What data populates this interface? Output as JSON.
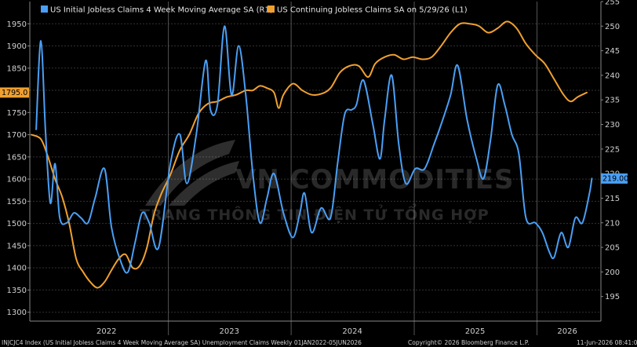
{
  "chart_data": {
    "type": "line",
    "x_range": [
      "2021-11-15",
      "2026-07-10"
    ],
    "x_ticks": [
      {
        "label": "2022",
        "date": "2022-07-01"
      },
      {
        "label": "2023",
        "date": "2023-07-01"
      },
      {
        "label": "2024",
        "date": "2024-07-01"
      },
      {
        "label": "2025",
        "date": "2025-07-01"
      },
      {
        "label": "2026",
        "date": "2026-04-01"
      }
    ],
    "year_dividers": [
      "2023-01-01",
      "2024-01-01",
      "2025-01-01",
      "2026-01-01"
    ],
    "left_axis": {
      "ylim": [
        1280,
        2000
      ],
      "ticks": [
        1300,
        1350,
        1400,
        1450,
        1500,
        1550,
        1600,
        1650,
        1700,
        1750,
        1800,
        1850,
        1900,
        1950
      ]
    },
    "right_axis": {
      "ylim": [
        190,
        255
      ],
      "ticks": [
        195,
        200,
        205,
        210,
        215,
        220,
        225,
        230,
        235,
        240,
        245,
        250,
        255
      ]
    },
    "grid": true,
    "legend_position": "top-left",
    "series": [
      {
        "name": "US Initial Jobless Claims 4 Week Moving Average SA  (R1)",
        "axis": "right",
        "color": "#4a9ff5",
        "last_value_label": "219.00",
        "points": [
          [
            "2021-12-04",
            229
          ],
          [
            "2021-12-18",
            247
          ],
          [
            "2022-01-01",
            228
          ],
          [
            "2022-01-15",
            214
          ],
          [
            "2022-01-29",
            222
          ],
          [
            "2022-02-12",
            211
          ],
          [
            "2022-03-05",
            210
          ],
          [
            "2022-03-26",
            212
          ],
          [
            "2022-04-16",
            211
          ],
          [
            "2022-05-07",
            210
          ],
          [
            "2022-05-28",
            215
          ],
          [
            "2022-06-25",
            221
          ],
          [
            "2022-07-16",
            209
          ],
          [
            "2022-08-13",
            202
          ],
          [
            "2022-09-03",
            200
          ],
          [
            "2022-09-24",
            206
          ],
          [
            "2022-10-15",
            212
          ],
          [
            "2022-11-05",
            210
          ],
          [
            "2022-12-03",
            205
          ],
          [
            "2023-01-07",
            222
          ],
          [
            "2023-02-04",
            228
          ],
          [
            "2023-02-25",
            218
          ],
          [
            "2023-03-25",
            228
          ],
          [
            "2023-04-22",
            243
          ],
          [
            "2023-05-06",
            233
          ],
          [
            "2023-05-27",
            234
          ],
          [
            "2023-06-17",
            250
          ],
          [
            "2023-07-08",
            236
          ],
          [
            "2023-07-29",
            246
          ],
          [
            "2023-08-19",
            236
          ],
          [
            "2023-09-09",
            220
          ],
          [
            "2023-09-30",
            210
          ],
          [
            "2023-10-21",
            215
          ],
          [
            "2023-11-11",
            220
          ],
          [
            "2023-12-09",
            212
          ],
          [
            "2024-01-06",
            207
          ],
          [
            "2024-01-27",
            212
          ],
          [
            "2024-02-10",
            216
          ],
          [
            "2024-03-02",
            208
          ],
          [
            "2024-03-30",
            213
          ],
          [
            "2024-04-27",
            211
          ],
          [
            "2024-05-18",
            222
          ],
          [
            "2024-06-08",
            232
          ],
          [
            "2024-06-29",
            233
          ],
          [
            "2024-07-13",
            234
          ],
          [
            "2024-08-03",
            239
          ],
          [
            "2024-08-31",
            230
          ],
          [
            "2024-09-21",
            223
          ],
          [
            "2024-10-05",
            231
          ],
          [
            "2024-10-26",
            240
          ],
          [
            "2024-11-16",
            226
          ],
          [
            "2024-12-07",
            218
          ],
          [
            "2025-01-04",
            221
          ],
          [
            "2025-02-01",
            221
          ],
          [
            "2025-03-01",
            226
          ],
          [
            "2025-03-22",
            230
          ],
          [
            "2025-04-19",
            236
          ],
          [
            "2025-05-10",
            242
          ],
          [
            "2025-06-07",
            231
          ],
          [
            "2025-07-05",
            223
          ],
          [
            "2025-07-26",
            219
          ],
          [
            "2025-08-16",
            227
          ],
          [
            "2025-09-06",
            238
          ],
          [
            "2025-09-27",
            234
          ],
          [
            "2025-10-18",
            228
          ],
          [
            "2025-11-08",
            224
          ],
          [
            "2025-11-29",
            211
          ],
          [
            "2025-12-27",
            210
          ],
          [
            "2026-01-17",
            208
          ],
          [
            "2026-02-07",
            204
          ],
          [
            "2026-02-21",
            203
          ],
          [
            "2026-03-14",
            208
          ],
          [
            "2026-04-04",
            205
          ],
          [
            "2026-04-25",
            211
          ],
          [
            "2026-05-16",
            210
          ],
          [
            "2026-06-06",
            216
          ],
          [
            "2026-06-13",
            219
          ]
        ]
      },
      {
        "name": "US Continuing Jobless Claims SA  on 5/29/26 (L1)",
        "axis": "left",
        "color": "#f0a030",
        "last_value_label": "1795.0",
        "points": [
          [
            "2021-11-20",
            1700
          ],
          [
            "2021-12-18",
            1690
          ],
          [
            "2022-01-08",
            1650
          ],
          [
            "2022-01-29",
            1600
          ],
          [
            "2022-02-19",
            1560
          ],
          [
            "2022-03-12",
            1500
          ],
          [
            "2022-04-02",
            1420
          ],
          [
            "2022-04-23",
            1390
          ],
          [
            "2022-05-14",
            1368
          ],
          [
            "2022-06-04",
            1355
          ],
          [
            "2022-06-25",
            1368
          ],
          [
            "2022-07-16",
            1395
          ],
          [
            "2022-08-06",
            1420
          ],
          [
            "2022-08-27",
            1430
          ],
          [
            "2022-09-17",
            1400
          ],
          [
            "2022-10-08",
            1405
          ],
          [
            "2022-10-29",
            1445
          ],
          [
            "2022-11-19",
            1520
          ],
          [
            "2022-12-10",
            1565
          ],
          [
            "2023-01-07",
            1610
          ],
          [
            "2023-02-04",
            1665
          ],
          [
            "2023-03-04",
            1700
          ],
          [
            "2023-04-01",
            1748
          ],
          [
            "2023-04-29",
            1770
          ],
          [
            "2023-05-27",
            1775
          ],
          [
            "2023-06-24",
            1785
          ],
          [
            "2023-07-22",
            1790
          ],
          [
            "2023-08-19",
            1800
          ],
          [
            "2023-09-09",
            1800
          ],
          [
            "2023-09-30",
            1810
          ],
          [
            "2023-10-21",
            1805
          ],
          [
            "2023-11-11",
            1795
          ],
          [
            "2023-11-25",
            1760
          ],
          [
            "2023-12-09",
            1790
          ],
          [
            "2024-01-06",
            1815
          ],
          [
            "2024-02-03",
            1800
          ],
          [
            "2024-03-02",
            1790
          ],
          [
            "2024-03-30",
            1792
          ],
          [
            "2024-04-27",
            1805
          ],
          [
            "2024-05-25",
            1840
          ],
          [
            "2024-06-22",
            1855
          ],
          [
            "2024-07-20",
            1855
          ],
          [
            "2024-08-17",
            1830
          ],
          [
            "2024-09-07",
            1860
          ],
          [
            "2024-10-05",
            1875
          ],
          [
            "2024-11-02",
            1880
          ],
          [
            "2024-11-30",
            1870
          ],
          [
            "2024-12-28",
            1875
          ],
          [
            "2025-01-25",
            1870
          ],
          [
            "2025-02-22",
            1875
          ],
          [
            "2025-03-22",
            1900
          ],
          [
            "2025-04-19",
            1930
          ],
          [
            "2025-05-17",
            1950
          ],
          [
            "2025-06-14",
            1950
          ],
          [
            "2025-07-12",
            1945
          ],
          [
            "2025-08-09",
            1930
          ],
          [
            "2025-09-06",
            1940
          ],
          [
            "2025-10-04",
            1955
          ],
          [
            "2025-11-01",
            1940
          ],
          [
            "2025-11-29",
            1905
          ],
          [
            "2025-12-27",
            1880
          ],
          [
            "2026-01-24",
            1860
          ],
          [
            "2026-02-21",
            1825
          ],
          [
            "2026-03-21",
            1790
          ],
          [
            "2026-04-11",
            1775
          ],
          [
            "2026-05-02",
            1785
          ],
          [
            "2026-05-29",
            1795
          ]
        ]
      }
    ]
  },
  "watermark": {
    "title": "VN COMMODITIES",
    "subtitle": "TRANG THÔNG TIN ĐIỆN TỬ TỔNG HỢP"
  },
  "footer": {
    "left": "INJCJC4 Index (US Initial Jobless Claims 4 Week Moving Average SA) Unemployment Claims Weekly 01JAN2022-05JUN2026",
    "middle": "Copyright© 2026 Bloomberg Finance L.P.",
    "right": "11-Jun-2026 08:41:0"
  },
  "colors": {
    "background": "#000000",
    "grid": "#3a3a3a",
    "initial_claims": "#4a9ff5",
    "continuing_claims": "#f0a030"
  }
}
